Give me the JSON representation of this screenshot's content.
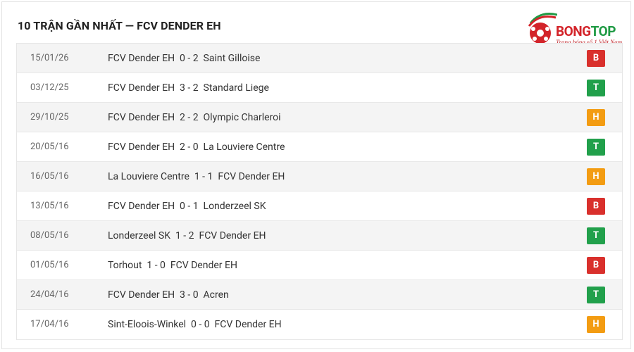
{
  "header": {
    "title": "10 TRẬN GẦN NHẤT — FCV DENDER EH"
  },
  "logo": {
    "brand_a": "BONG",
    "brand_b": "TOP",
    "tagline": "Trang bóng số 1 Việt Nam"
  },
  "result_colors": {
    "B": "#d9302c",
    "T": "#21a04b",
    "H": "#f39c12"
  },
  "table": {
    "rows": [
      [
        "15/01/26",
        "FCV Dender EH",
        "0 - 2",
        "Saint Gilloise",
        "B"
      ],
      [
        "03/12/25",
        "FCV Dender EH",
        "3 - 2",
        "Standard Liege",
        "T"
      ],
      [
        "29/10/25",
        "FCV Dender EH",
        "2 - 2",
        "Olympic Charleroi",
        "H"
      ],
      [
        "20/05/16",
        "FCV Dender EH",
        "2 - 0",
        "La Louviere Centre",
        "T"
      ],
      [
        "16/05/16",
        "La Louviere Centre",
        "1 - 1",
        "FCV Dender EH",
        "H"
      ],
      [
        "13/05/16",
        "FCV Dender EH",
        "0 - 1",
        "Londerzeel SK",
        "B"
      ],
      [
        "08/05/16",
        "Londerzeel SK",
        "1 - 2",
        "FCV Dender EH",
        "T"
      ],
      [
        "01/05/16",
        "Torhout",
        "1 - 0",
        "FCV Dender EH",
        "B"
      ],
      [
        "24/04/16",
        "FCV Dender EH",
        "3 - 0",
        "Acren",
        "T"
      ],
      [
        "17/04/16",
        "Sint-Eloois-Winkel",
        "0 - 0",
        "FCV Dender EH",
        "H"
      ]
    ]
  }
}
